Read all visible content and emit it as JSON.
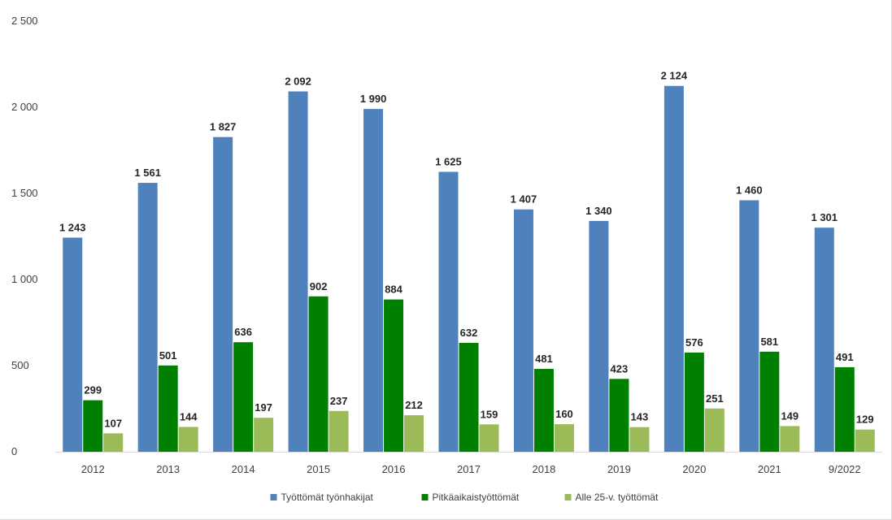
{
  "chart_data": {
    "type": "bar",
    "title": "",
    "xlabel": "",
    "ylabel": "",
    "ylim": [
      0,
      2500
    ],
    "y_ticks": [
      "0",
      "500",
      "1 000",
      "1 500",
      "2 000",
      "2 500"
    ],
    "y_tick_values": [
      0,
      500,
      1000,
      1500,
      2000,
      2500
    ],
    "grid": false,
    "legend_position": "bottom",
    "categories": [
      "2012",
      "2013",
      "2014",
      "2015",
      "2016",
      "2017",
      "2018",
      "2019",
      "2020",
      "2021",
      "9/2022"
    ],
    "series": [
      {
        "name": "Työttömät työnhakijat",
        "color": "#4f81bd",
        "values": [
          1243,
          1561,
          1827,
          2092,
          1990,
          1625,
          1407,
          1340,
          2124,
          1460,
          1301
        ],
        "labels": [
          "1 243",
          "1 561",
          "1 827",
          "2 092",
          "1 990",
          "1 625",
          "1 407",
          "1 340",
          "2 124",
          "1 460",
          "1 301"
        ]
      },
      {
        "name": "Pitkäaikaistyöttömät",
        "color": "#008000",
        "values": [
          299,
          501,
          636,
          902,
          884,
          632,
          481,
          423,
          576,
          581,
          491
        ],
        "labels": [
          "299",
          "501",
          "636",
          "902",
          "884",
          "632",
          "481",
          "423",
          "576",
          "581",
          "491"
        ]
      },
      {
        "name": "Alle 25-v. työttömät",
        "color": "#9bbb59",
        "values": [
          107,
          144,
          197,
          237,
          212,
          159,
          160,
          143,
          251,
          149,
          129
        ],
        "labels": [
          "107",
          "144",
          "197",
          "237",
          "212",
          "159",
          "160",
          "143",
          "251",
          "149",
          "129"
        ]
      }
    ]
  }
}
